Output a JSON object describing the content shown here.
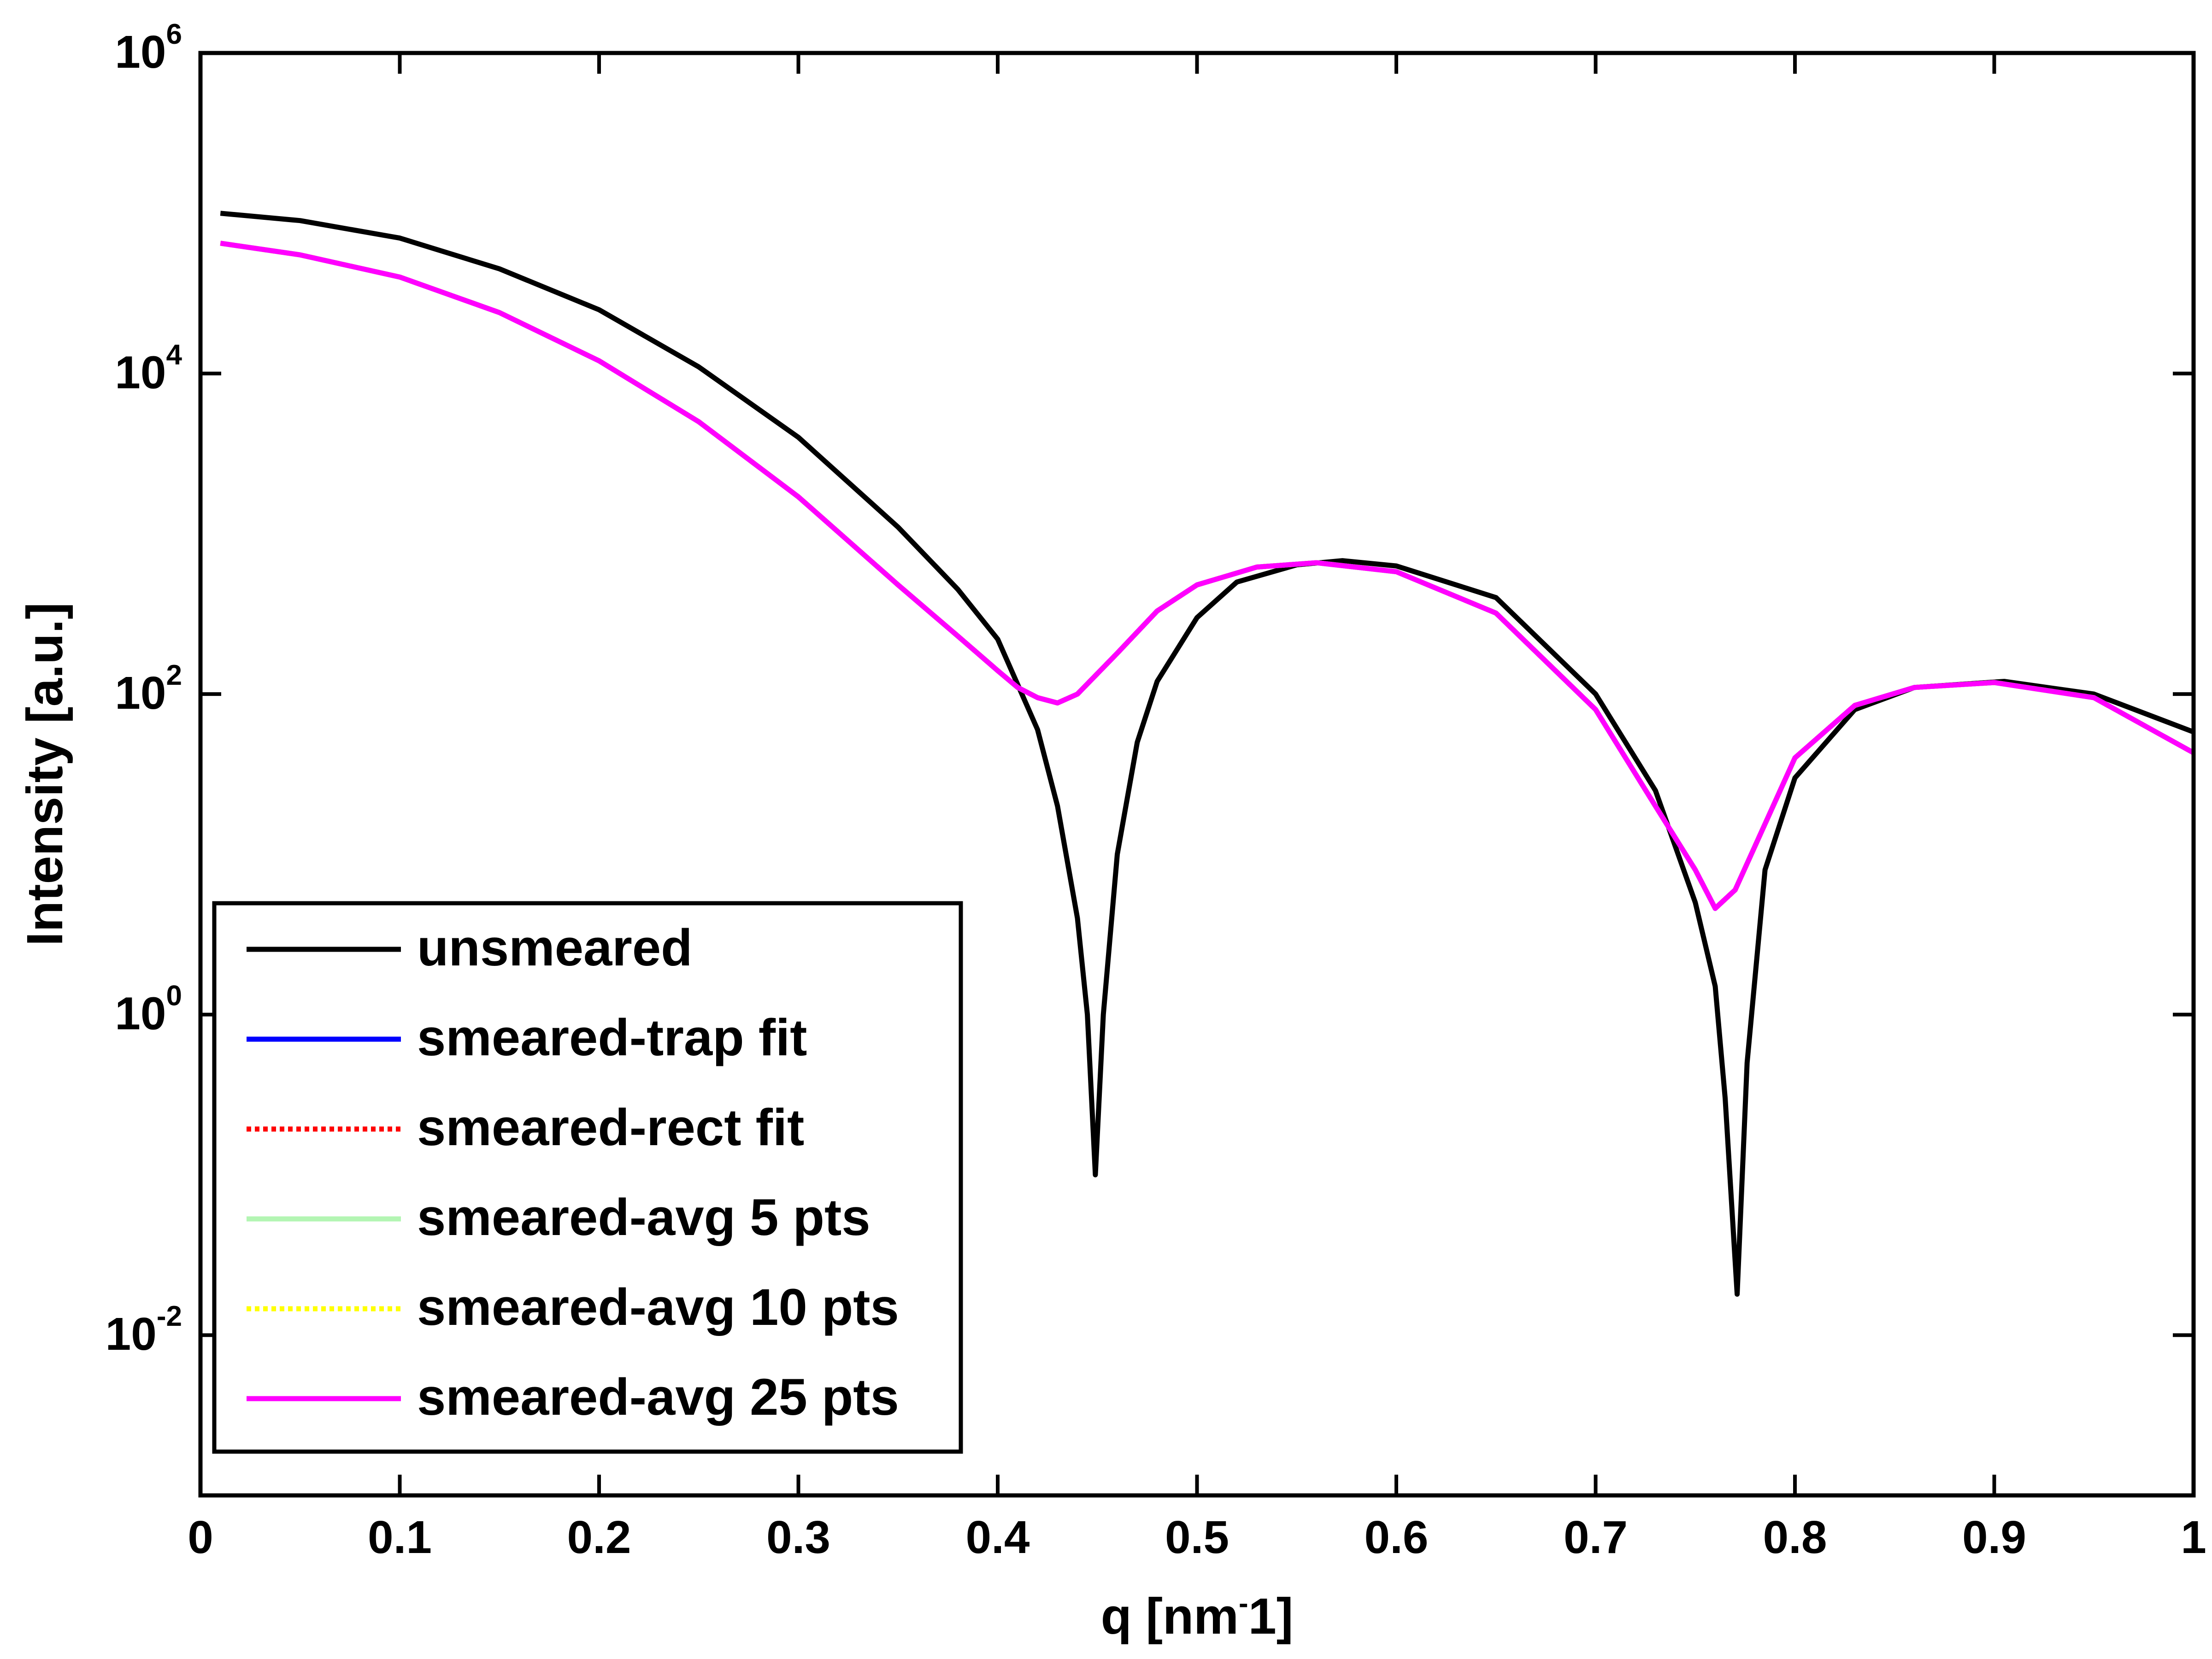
{
  "chart_data": {
    "type": "line",
    "xlabel": "q [nm-1]",
    "xlabel_parts": {
      "main": "q [nm",
      "sup": "-",
      "tail": "1]"
    },
    "ylabel": "Intensity [a.u.]",
    "xlim": [
      0,
      1
    ],
    "ylim": [
      0.001,
      1000000
    ],
    "yscale": "log",
    "grid": false,
    "legend_position": "bottom-left",
    "x_ticks": [
      {
        "value": 0,
        "label": "0"
      },
      {
        "value": 0.1,
        "label": "0.1"
      },
      {
        "value": 0.2,
        "label": "0.2"
      },
      {
        "value": 0.3,
        "label": "0.3"
      },
      {
        "value": 0.4,
        "label": "0.4"
      },
      {
        "value": 0.5,
        "label": "0.5"
      },
      {
        "value": 0.6,
        "label": "0.6"
      },
      {
        "value": 0.7,
        "label": "0.7"
      },
      {
        "value": 0.8,
        "label": "0.8"
      },
      {
        "value": 0.9,
        "label": "0.9"
      },
      {
        "value": 1,
        "label": "1"
      }
    ],
    "y_ticks": [
      {
        "value": 0.01,
        "base": "10",
        "exp": "-2"
      },
      {
        "value": 1,
        "base": "10",
        "exp": "0"
      },
      {
        "value": 100,
        "base": "10",
        "exp": "2"
      },
      {
        "value": 10000,
        "base": "10",
        "exp": "4"
      },
      {
        "value": 1000000,
        "base": "10",
        "exp": "6"
      }
    ],
    "series": [
      {
        "name": "unsmeared",
        "color": "#000000",
        "style": "solid",
        "x": [
          0.01,
          0.05,
          0.1,
          0.15,
          0.2,
          0.25,
          0.3,
          0.35,
          0.38,
          0.4,
          0.42,
          0.43,
          0.44,
          0.445,
          0.449,
          0.453,
          0.46,
          0.47,
          0.48,
          0.5,
          0.52,
          0.55,
          0.573,
          0.6,
          0.65,
          0.7,
          0.73,
          0.75,
          0.76,
          0.765,
          0.771,
          0.776,
          0.785,
          0.8,
          0.83,
          0.86,
          0.905,
          0.95,
          1.0
        ],
        "y": [
          100000,
          90000,
          70000,
          45000,
          25000,
          11000,
          4000,
          1100,
          450,
          220,
          60,
          20,
          4,
          1,
          0.1,
          1,
          10,
          50,
          120,
          300,
          500,
          640,
          680,
          630,
          400,
          100,
          25,
          5,
          1.5,
          0.3,
          0.018,
          0.5,
          8,
          30,
          80,
          110,
          120,
          100,
          58
        ]
      },
      {
        "name": "smeared-trap fit",
        "color": "#0000ff",
        "style": "solid",
        "x": [
          0.01,
          0.05,
          0.1,
          0.15,
          0.2,
          0.25,
          0.3,
          0.35,
          0.38,
          0.4,
          0.41,
          0.42,
          0.43,
          0.44,
          0.46,
          0.48,
          0.5,
          0.53,
          0.56,
          0.6,
          0.65,
          0.7,
          0.73,
          0.75,
          0.76,
          0.77,
          0.8,
          0.83,
          0.86,
          0.9,
          0.95,
          1.0
        ],
        "y": [
          65000,
          55000,
          40000,
          24000,
          12000,
          5000,
          1700,
          480,
          230,
          140,
          110,
          95,
          88,
          100,
          180,
          330,
          480,
          620,
          660,
          580,
          320,
          80,
          20,
          8,
          4.6,
          6,
          40,
          85,
          110,
          118,
          95,
          43
        ]
      },
      {
        "name": "smeared-rect fit",
        "color": "#ff0000",
        "style": "dotted",
        "x": [
          0.01,
          0.05,
          0.1,
          0.15,
          0.2,
          0.25,
          0.3,
          0.35,
          0.38,
          0.4,
          0.41,
          0.42,
          0.43,
          0.44,
          0.46,
          0.48,
          0.5,
          0.53,
          0.56,
          0.6,
          0.65,
          0.7,
          0.73,
          0.75,
          0.76,
          0.77,
          0.8,
          0.83,
          0.86,
          0.9,
          0.95,
          1.0
        ],
        "y": [
          65000,
          55000,
          40000,
          24000,
          12000,
          5000,
          1700,
          480,
          230,
          140,
          110,
          95,
          88,
          100,
          180,
          330,
          480,
          620,
          660,
          580,
          320,
          80,
          20,
          8,
          4.6,
          6,
          40,
          85,
          110,
          118,
          95,
          43
        ]
      },
      {
        "name": "smeared-avg 5 pts",
        "color": "#b3f5b3",
        "style": "solid",
        "x": [
          0.01,
          0.05,
          0.1,
          0.15,
          0.2,
          0.25,
          0.3,
          0.35,
          0.38,
          0.4,
          0.41,
          0.42,
          0.43,
          0.44,
          0.46,
          0.48,
          0.5,
          0.53,
          0.56,
          0.6,
          0.65,
          0.7,
          0.73,
          0.75,
          0.76,
          0.77,
          0.8,
          0.83,
          0.86,
          0.9,
          0.95,
          1.0
        ],
        "y": [
          65000,
          55000,
          40000,
          24000,
          12000,
          5000,
          1700,
          480,
          230,
          140,
          110,
          95,
          88,
          100,
          180,
          330,
          480,
          620,
          660,
          580,
          320,
          80,
          20,
          8,
          4.6,
          6,
          40,
          85,
          110,
          118,
          95,
          43
        ]
      },
      {
        "name": "smeared-avg 10 pts",
        "color": "#ffff00",
        "style": "dotted",
        "x": [
          0.01,
          0.05,
          0.1,
          0.15,
          0.2,
          0.25,
          0.3,
          0.35,
          0.38,
          0.4,
          0.41,
          0.42,
          0.43,
          0.44,
          0.46,
          0.48,
          0.5,
          0.53,
          0.56,
          0.6,
          0.65,
          0.7,
          0.73,
          0.75,
          0.76,
          0.77,
          0.8,
          0.83,
          0.86,
          0.9,
          0.95,
          1.0
        ],
        "y": [
          65000,
          55000,
          40000,
          24000,
          12000,
          5000,
          1700,
          480,
          230,
          140,
          110,
          95,
          88,
          100,
          180,
          330,
          480,
          620,
          660,
          580,
          320,
          80,
          20,
          8,
          4.6,
          6,
          40,
          85,
          110,
          118,
          95,
          43
        ]
      },
      {
        "name": "smeared-avg 25 pts",
        "color": "#ff00ff",
        "style": "solid",
        "x": [
          0.01,
          0.05,
          0.1,
          0.15,
          0.2,
          0.25,
          0.3,
          0.35,
          0.38,
          0.4,
          0.41,
          0.42,
          0.43,
          0.44,
          0.46,
          0.48,
          0.5,
          0.53,
          0.56,
          0.6,
          0.65,
          0.7,
          0.73,
          0.75,
          0.76,
          0.77,
          0.8,
          0.83,
          0.86,
          0.9,
          0.95,
          1.0
        ],
        "y": [
          65000,
          55000,
          40000,
          24000,
          12000,
          5000,
          1700,
          480,
          230,
          140,
          110,
          95,
          88,
          100,
          180,
          330,
          480,
          620,
          660,
          580,
          320,
          80,
          20,
          8,
          4.6,
          6,
          40,
          85,
          110,
          118,
          95,
          43
        ]
      }
    ]
  }
}
